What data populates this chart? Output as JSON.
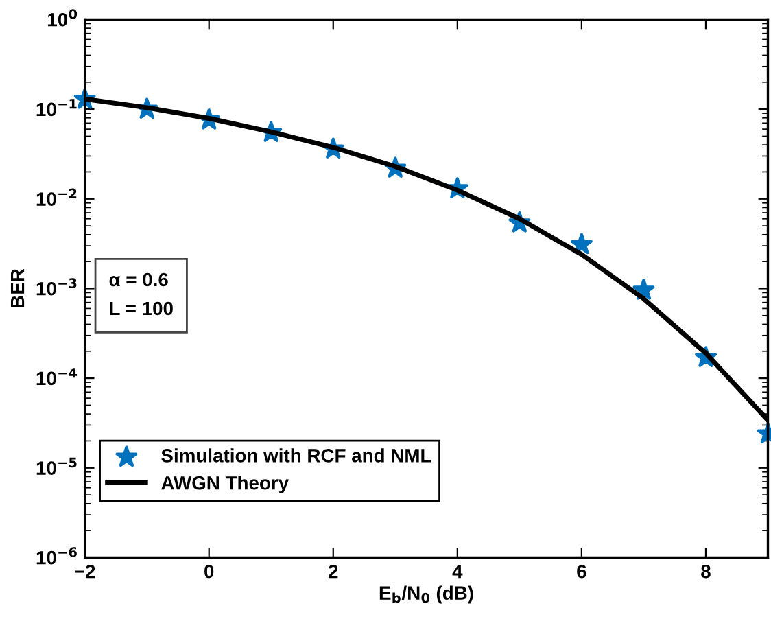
{
  "chart_data": {
    "type": "line",
    "xlabel": "E$_{b}$/N$_{0}$ (dB)",
    "ylabel": "BER",
    "log": "y",
    "grid": false,
    "legend": "bottom left",
    "x": [
      -2,
      -1,
      0,
      1,
      2,
      3,
      4,
      5,
      6,
      7,
      8,
      9
    ],
    "series": [
      {
        "name": "Simulation with RCF and NML",
        "type": "scatter",
        "marker": "star",
        "color": "#0072bd",
        "values": [
          0.129,
          0.1,
          0.076,
          0.055,
          0.036,
          0.022,
          0.013,
          0.0054,
          0.0031,
          0.00096,
          0.00017,
          2.4e-05
        ]
      },
      {
        "name": "AWGN Theory",
        "marker": "none",
        "line_style": "solid",
        "color": "#000000",
        "values": [
          0.13,
          0.104,
          0.079,
          0.056,
          0.0375,
          0.023,
          0.0125,
          0.006,
          0.0024,
          0.00077,
          0.00019,
          3.4e-05
        ]
      }
    ],
    "xlim": [
      -2,
      9
    ],
    "xticks": [
      {
        "value": -2,
        "label": "−2"
      },
      0,
      2,
      4,
      6,
      8
    ],
    "ylim": [
      1e-06,
      1
    ],
    "yticks": [
      {
        "value": 1e-06,
        "label": "10$^{−6}$"
      },
      {
        "value": 1e-05,
        "label": "10$^{−5}$"
      },
      {
        "value": 0.0001,
        "label": "10$^{−4}$"
      },
      {
        "value": 0.001,
        "label": "10$^{−3}$"
      },
      {
        "value": 0.01,
        "label": "10$^{−2}$"
      },
      {
        "value": 0.1,
        "label": "10$^{−1}$"
      },
      {
        "value": 1,
        "label": "10$^{0}$"
      }
    ],
    "annotations": [
      "α = 0.6\nL = 100"
    ]
  }
}
